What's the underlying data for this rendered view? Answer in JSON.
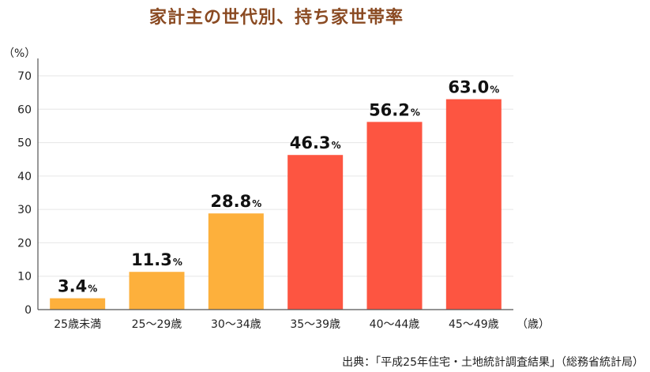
{
  "title": "家計主の世代別、持ち家世帯率",
  "source": "出典：「平成25年住宅・土地統計調査結果」（総務省統計局）",
  "chart_data": {
    "type": "bar",
    "title": "家計主の世代別、持ち家世帯率",
    "ylabel": "（%）",
    "xlabel": "（歳）",
    "categories": [
      "25歳未満",
      "25～29歳",
      "30～34歳",
      "35～39歳",
      "40～44歳",
      "45～49歳"
    ],
    "values": [
      3.4,
      11.3,
      28.8,
      46.3,
      56.2,
      63.0
    ],
    "value_labels": [
      "3.4",
      "11.3",
      "28.8",
      "46.3",
      "56.2",
      "63.0"
    ],
    "value_unit": "%",
    "ylim": [
      0,
      70
    ],
    "yticks": [
      0,
      10,
      20,
      30,
      40,
      50,
      60,
      70
    ],
    "grid": true,
    "colors": [
      "#FDB03C",
      "#FDB03C",
      "#FDB03C",
      "#FD5541",
      "#FD5541",
      "#FD5541"
    ],
    "axis_color": "#555555",
    "grid_color": "#e6e6e6"
  }
}
